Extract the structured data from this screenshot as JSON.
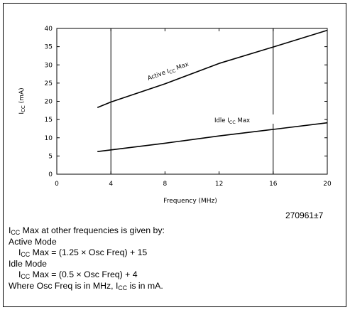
{
  "chart_data": {
    "type": "line",
    "xlabel": "Frequency (MHz)",
    "ylabel": {
      "base": "I",
      "sub": "CC",
      "rest": " (mA)"
    },
    "xlim": [
      0,
      20
    ],
    "ylim": [
      0,
      40
    ],
    "x_ticks": [
      "0",
      "4",
      "8",
      "12",
      "16",
      "20"
    ],
    "y_ticks": [
      "0",
      "5",
      "10",
      "15",
      "20",
      "25",
      "30",
      "35",
      "40"
    ],
    "highlight_gridlines_x": [
      4,
      16
    ],
    "grid": false,
    "series": [
      {
        "name": {
          "base": "Active I",
          "sub": "CC",
          "rest": " Max"
        },
        "x": [
          3,
          4,
          8,
          12,
          16,
          20
        ],
        "y": [
          18.3,
          19.8,
          24.8,
          30.4,
          34.9,
          39.5
        ]
      },
      {
        "name": {
          "base": "Idle I",
          "sub": "CC",
          "rest": " Max"
        },
        "x": [
          3,
          8,
          12,
          16,
          20
        ],
        "y": [
          6.2,
          8.5,
          10.5,
          12.3,
          14.1
        ]
      }
    ]
  },
  "figure_id": "270961±7",
  "notes": {
    "line1": {
      "pre": "I",
      "sub": "CC",
      "rest": " Max at other frequencies is given by:"
    },
    "line2": "Active Mode",
    "line3": {
      "pre": "I",
      "sub": "CC",
      "rest": " Max = (1.25 × Osc Freq) + 15"
    },
    "line4": "Idle Mode",
    "line5": {
      "pre": "I",
      "sub": "CC",
      "rest": " Max = (0.5 × Osc Freq) + 4"
    },
    "line6": {
      "pre": "Where Osc Freq is in MHz, I",
      "sub": "CC",
      "rest": " is in mA."
    }
  }
}
